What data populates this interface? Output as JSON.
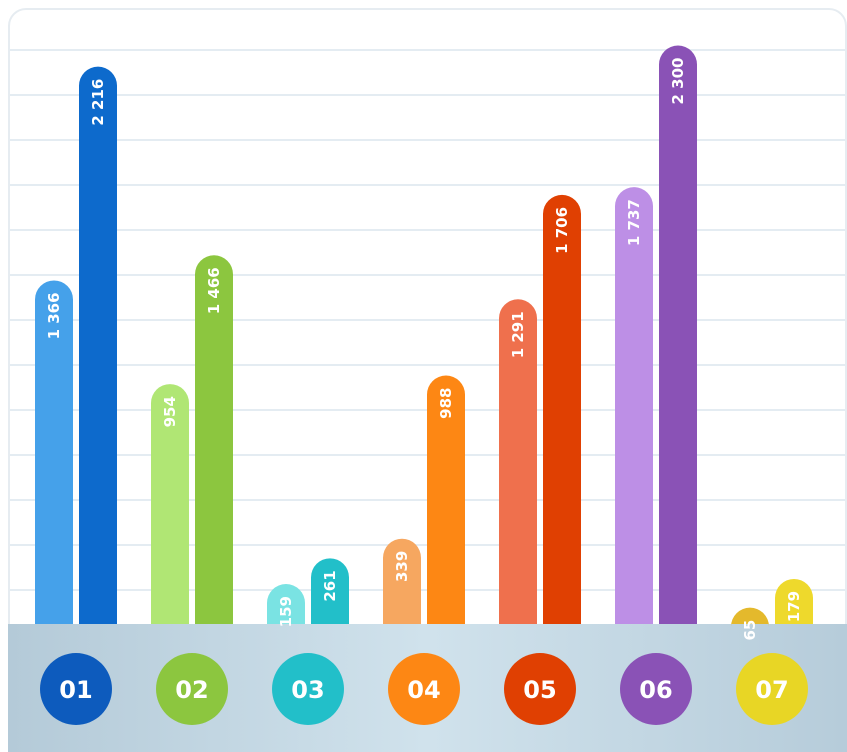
{
  "chart_data": {
    "type": "bar",
    "categories": [
      "01",
      "02",
      "03",
      "04",
      "05",
      "06",
      "07"
    ],
    "series": [
      {
        "values": [
          1366,
          954,
          159,
          339,
          1291,
          1737,
          65
        ],
        "labels": [
          "1 366",
          "954",
          "159",
          "339",
          "1 291",
          "1 737",
          "65"
        ]
      },
      {
        "values": [
          2216,
          1466,
          261,
          988,
          1706,
          2300,
          179
        ],
        "labels": [
          "2 216",
          "1 466",
          "261",
          "988",
          "1 706",
          "2 300",
          "179"
        ]
      }
    ],
    "category_colors": [
      {
        "light": "#45a1ea",
        "dark": "#0d6acc",
        "badge": "#0d5bbd"
      },
      {
        "light": "#b0e674",
        "dark": "#8cc63f",
        "badge": "#8cc63f"
      },
      {
        "light": "#7ae3e3",
        "dark": "#22bfc9",
        "badge": "#22bfc9"
      },
      {
        "light": "#f6a760",
        "dark": "#fd8714",
        "badge": "#fd8714"
      },
      {
        "light": "#ef704d",
        "dark": "#e04002",
        "badge": "#e04002"
      },
      {
        "light": "#bd8fe6",
        "dark": "#8a52b6",
        "badge": "#8a52b6"
      },
      {
        "light": "#e4b92c",
        "dark": "#eed92c",
        "badge": "#e8d625"
      }
    ],
    "grid": true,
    "grid_color": "#dbe6ee",
    "ylim": [
      0,
      2330
    ]
  }
}
